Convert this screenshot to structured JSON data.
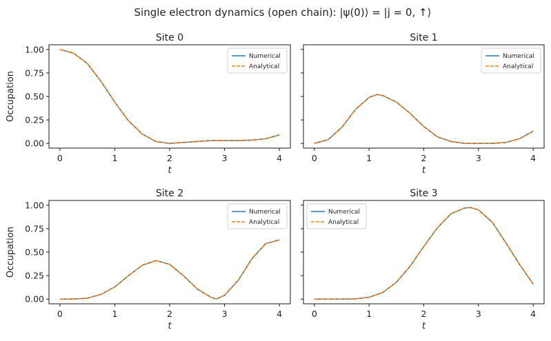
{
  "figure": {
    "suptitle": "Single electron dynamics (open chain): |ψ(0)⟩ = |j = 0, ↑⟩"
  },
  "chart_data": [
    {
      "type": "line",
      "title": "Site 0",
      "xlabel": "t",
      "ylabel": "Occupation",
      "xlim": [
        -0.2,
        4.2
      ],
      "ylim": [
        -0.05,
        1.05
      ],
      "xticks": [
        "0",
        "1",
        "2",
        "3",
        "4"
      ],
      "yticks": [
        "0.00",
        "0.25",
        "0.50",
        "0.75",
        "1.00"
      ],
      "legend_position": "top-right",
      "series": [
        {
          "name": "Numerical",
          "color": "#1f77b4",
          "style": "solid",
          "x": [
            0,
            0.25,
            0.5,
            0.75,
            1,
            1.25,
            1.5,
            1.75,
            2,
            2.25,
            2.5,
            2.75,
            3,
            3.25,
            3.5,
            3.75,
            4
          ],
          "y": [
            1.0,
            0.96,
            0.85,
            0.66,
            0.44,
            0.24,
            0.1,
            0.02,
            0.0,
            0.01,
            0.02,
            0.03,
            0.03,
            0.03,
            0.035,
            0.05,
            0.09
          ]
        },
        {
          "name": "Analytical",
          "color": "#ff7f0e",
          "style": "dashed",
          "x": [
            0,
            0.25,
            0.5,
            0.75,
            1,
            1.25,
            1.5,
            1.75,
            2,
            2.25,
            2.5,
            2.75,
            3,
            3.25,
            3.5,
            3.75,
            4
          ],
          "y": [
            1.0,
            0.96,
            0.85,
            0.66,
            0.44,
            0.24,
            0.1,
            0.02,
            0.0,
            0.01,
            0.02,
            0.03,
            0.03,
            0.03,
            0.035,
            0.05,
            0.09
          ]
        }
      ]
    },
    {
      "type": "line",
      "title": "Site 1",
      "xlabel": "t",
      "ylabel": "",
      "xlim": [
        -0.2,
        4.2
      ],
      "ylim": [
        -0.05,
        1.05
      ],
      "xticks": [
        "0",
        "1",
        "2",
        "3",
        "4"
      ],
      "yticks": [
        "",
        "",
        "",
        "",
        ""
      ],
      "legend_position": "top-right",
      "series": [
        {
          "name": "Numerical",
          "color": "#1f77b4",
          "style": "solid",
          "x": [
            0,
            0.25,
            0.5,
            0.75,
            1,
            1.15,
            1.25,
            1.5,
            1.75,
            2,
            2.25,
            2.5,
            2.75,
            3,
            3.25,
            3.5,
            3.75,
            4
          ],
          "y": [
            0.0,
            0.04,
            0.17,
            0.36,
            0.49,
            0.52,
            0.51,
            0.44,
            0.32,
            0.18,
            0.07,
            0.02,
            0.0,
            0.0,
            0.0,
            0.01,
            0.05,
            0.13
          ]
        },
        {
          "name": "Analytical",
          "color": "#ff7f0e",
          "style": "dashed",
          "x": [
            0,
            0.25,
            0.5,
            0.75,
            1,
            1.15,
            1.25,
            1.5,
            1.75,
            2,
            2.25,
            2.5,
            2.75,
            3,
            3.25,
            3.5,
            3.75,
            4
          ],
          "y": [
            0.0,
            0.04,
            0.17,
            0.36,
            0.49,
            0.52,
            0.51,
            0.44,
            0.32,
            0.18,
            0.07,
            0.02,
            0.0,
            0.0,
            0.0,
            0.01,
            0.05,
            0.13
          ]
        }
      ]
    },
    {
      "type": "line",
      "title": "Site 2",
      "xlabel": "t",
      "ylabel": "Occupation",
      "xlim": [
        -0.2,
        4.2
      ],
      "ylim": [
        -0.05,
        1.05
      ],
      "xticks": [
        "0",
        "1",
        "2",
        "3",
        "4"
      ],
      "yticks": [
        "0.00",
        "0.25",
        "0.50",
        "0.75",
        "1.00"
      ],
      "legend_position": "top-right",
      "series": [
        {
          "name": "Numerical",
          "color": "#1f77b4",
          "style": "solid",
          "x": [
            0,
            0.25,
            0.5,
            0.75,
            1,
            1.25,
            1.5,
            1.75,
            2,
            2.25,
            2.5,
            2.75,
            2.85,
            3,
            3.25,
            3.5,
            3.75,
            4
          ],
          "y": [
            0.0,
            0.0,
            0.01,
            0.05,
            0.13,
            0.25,
            0.36,
            0.41,
            0.37,
            0.25,
            0.11,
            0.02,
            0.0,
            0.04,
            0.2,
            0.43,
            0.59,
            0.63
          ]
        },
        {
          "name": "Analytical",
          "color": "#ff7f0e",
          "style": "dashed",
          "x": [
            0,
            0.25,
            0.5,
            0.75,
            1,
            1.25,
            1.5,
            1.75,
            2,
            2.25,
            2.5,
            2.75,
            2.85,
            3,
            3.25,
            3.5,
            3.75,
            4
          ],
          "y": [
            0.0,
            0.0,
            0.01,
            0.05,
            0.13,
            0.25,
            0.36,
            0.41,
            0.37,
            0.25,
            0.11,
            0.02,
            0.0,
            0.04,
            0.2,
            0.43,
            0.59,
            0.63
          ]
        }
      ]
    },
    {
      "type": "line",
      "title": "Site 3",
      "xlabel": "t",
      "ylabel": "",
      "xlim": [
        -0.2,
        4.2
      ],
      "ylim": [
        -0.05,
        1.05
      ],
      "xticks": [
        "0",
        "1",
        "2",
        "3",
        "4"
      ],
      "yticks": [
        "",
        "",
        "",
        "",
        ""
      ],
      "legend_position": "top-left",
      "series": [
        {
          "name": "Numerical",
          "color": "#1f77b4",
          "style": "solid",
          "x": [
            0,
            0.25,
            0.5,
            0.75,
            1,
            1.25,
            1.5,
            1.75,
            2,
            2.25,
            2.5,
            2.75,
            2.85,
            3,
            3.25,
            3.5,
            3.75,
            4
          ],
          "y": [
            0.0,
            0.0,
            0.0,
            0.003,
            0.02,
            0.07,
            0.18,
            0.35,
            0.56,
            0.76,
            0.91,
            0.97,
            0.975,
            0.95,
            0.82,
            0.6,
            0.37,
            0.16
          ]
        },
        {
          "name": "Analytical",
          "color": "#ff7f0e",
          "style": "dashed",
          "x": [
            0,
            0.25,
            0.5,
            0.75,
            1,
            1.25,
            1.5,
            1.75,
            2,
            2.25,
            2.5,
            2.75,
            2.85,
            3,
            3.25,
            3.5,
            3.75,
            4
          ],
          "y": [
            0.0,
            0.0,
            0.0,
            0.003,
            0.02,
            0.07,
            0.18,
            0.35,
            0.56,
            0.76,
            0.91,
            0.97,
            0.975,
            0.95,
            0.82,
            0.6,
            0.37,
            0.16
          ]
        }
      ]
    }
  ]
}
